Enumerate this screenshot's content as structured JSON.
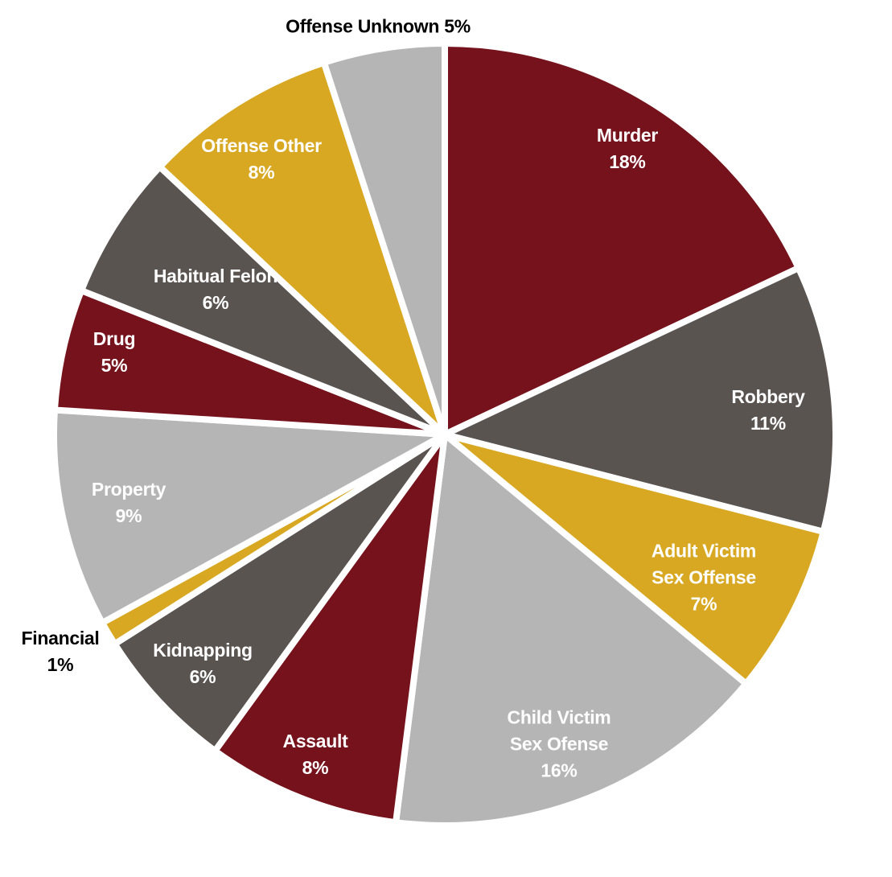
{
  "chart_data": {
    "type": "pie",
    "categories": [
      "Murder",
      "Robbery",
      "Adult Victim Sex Offense",
      "Child Victim Sex Ofense",
      "Assault",
      "Kidnapping",
      "Financial",
      "Property",
      "Drug",
      "Habitual Felon",
      "Offense Other",
      "Offense Unknown"
    ],
    "values": [
      18,
      11,
      7,
      16,
      8,
      6,
      1,
      9,
      5,
      6,
      8,
      5
    ],
    "value_labels": [
      "18%",
      "11%",
      "7%",
      "16%",
      "8%",
      "6%",
      "1%",
      "9%",
      "5%",
      "6%",
      "8%",
      "5%"
    ],
    "colors": [
      "#76121c",
      "#5a5451",
      "#d9a822",
      "#b5b5b5",
      "#76121c",
      "#5a5451",
      "#d9a822",
      "#b5b5b5",
      "#76121c",
      "#5a5451",
      "#d9a822",
      "#b5b5b5"
    ]
  }
}
